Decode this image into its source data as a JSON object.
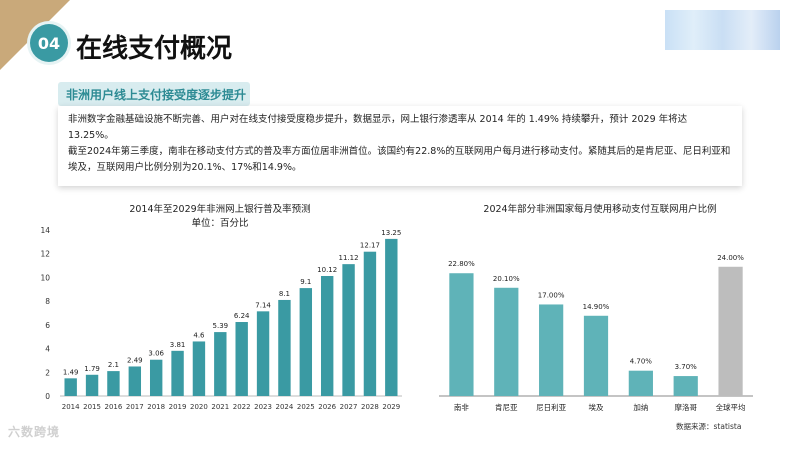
{
  "header": {
    "badge": "04",
    "title": "在线支付概况"
  },
  "section": {
    "subtitle": "非洲用户线上支付接受度逐步提升",
    "paragraph1": "非洲数字金融基础设施不断完善、用户对在线支付接受度稳步提升，数据显示，网上银行渗透率从 2014 年的 1.49% 持续攀升，预计 2029 年将达 13.25%。",
    "paragraph2": "截至2024年第三季度，南非在移动支付方式的普及率方面位居非洲首位。该国约有22.8%的互联网用户每月进行移动支付。紧随其后的是肯尼亚、尼日利亚和埃及，互联网用户比例分别为20.1%、17%和14.9%。"
  },
  "chart_data": [
    {
      "type": "bar",
      "title": "2014年至2029年非洲网上银行普及率预测",
      "subtitle": "单位：百分比",
      "categories": [
        "2014",
        "2015",
        "2016",
        "2017",
        "2018",
        "2019",
        "2020",
        "2021",
        "2022",
        "2023",
        "2024",
        "2025",
        "2026",
        "2027",
        "2028",
        "2029"
      ],
      "values": [
        1.49,
        1.79,
        2.1,
        2.49,
        3.06,
        3.81,
        4.6,
        5.39,
        6.24,
        7.14,
        8.1,
        9.1,
        10.12,
        11.12,
        12.17,
        13.25
      ],
      "value_labels": [
        "1.49",
        "1.79",
        "2.1",
        "2.49",
        "3.06",
        "3.81",
        "4.6",
        "5.39",
        "6.24",
        "7.14",
        "8.1",
        "9.1",
        "10.12",
        "11.12",
        "12.17",
        "13.25"
      ],
      "ylim": [
        0,
        14
      ],
      "yticks": [
        "0",
        "2",
        "4",
        "6",
        "8",
        "10",
        "12",
        "14"
      ],
      "color": "#3a9aa3"
    },
    {
      "type": "bar",
      "title": "2024年部分非洲国家每月使用移动支付互联网用户比例",
      "categories": [
        "南非",
        "肯尼亚",
        "尼日利亚",
        "埃及",
        "加纳",
        "摩洛哥",
        "全球平均"
      ],
      "values": [
        22.8,
        20.1,
        17.0,
        14.9,
        4.7,
        3.7,
        24.0
      ],
      "value_labels": [
        "22.80%",
        "20.10%",
        "17.00%",
        "14.90%",
        "4.70%",
        "3.70%",
        "24.00%"
      ],
      "ylim": [
        0,
        26
      ],
      "colors": [
        "#5fb3b8",
        "#5fb3b8",
        "#5fb3b8",
        "#5fb3b8",
        "#5fb3b8",
        "#5fb3b8",
        "#bdbdbd"
      ]
    }
  ],
  "footer": {
    "source": "数据来源：statista",
    "watermark": "六数跨境"
  }
}
